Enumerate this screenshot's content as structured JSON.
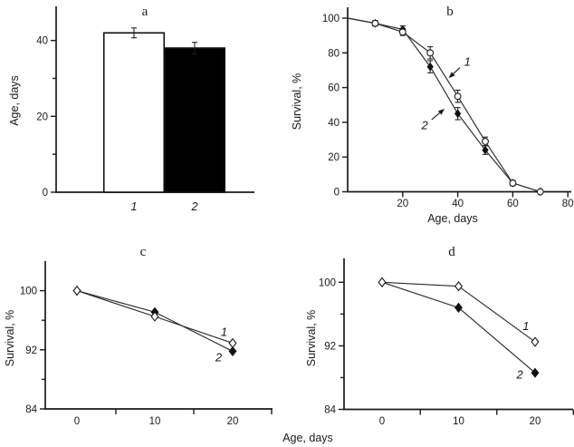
{
  "figure": {
    "bottom_xlabel": "Age, days",
    "ink_color": "#1a1a1a",
    "background_color": "#ffffff"
  },
  "chart_data": [
    {
      "panel": "a",
      "type": "bar",
      "title": "a",
      "ylabel": "Age, days",
      "categories": [
        "1",
        "2"
      ],
      "values": [
        42,
        38
      ],
      "errors": [
        1.3,
        1.5
      ],
      "bar_fills": [
        "#ffffff",
        "#000000"
      ],
      "ylim": [
        0,
        49
      ],
      "yticks": [
        0,
        20,
        40
      ],
      "yticks_minor": [
        10,
        30
      ],
      "grid": "off"
    },
    {
      "panel": "b",
      "type": "line",
      "title": "b",
      "xlabel": "Age, days",
      "ylabel": "Survival, %",
      "x": [
        0,
        10,
        20,
        30,
        40,
        50,
        60,
        70
      ],
      "series": [
        {
          "name": "1",
          "marker": "open-circle",
          "values": [
            100,
            97,
            92,
            80,
            55,
            29,
            5,
            0
          ],
          "errors": [
            0,
            1.5,
            2,
            3.5,
            3.5,
            2.5,
            1.5,
            0
          ]
        },
        {
          "name": "2",
          "marker": "filled-diamond",
          "values": [
            100,
            97,
            93.5,
            72,
            45,
            24,
            5,
            0
          ],
          "errors": [
            0,
            1.5,
            2,
            3.5,
            3.5,
            2.5,
            1.5,
            0
          ]
        }
      ],
      "xlim": [
        0,
        80
      ],
      "ylim": [
        0,
        100
      ],
      "xticks": [
        20,
        40,
        60,
        80
      ],
      "xtick_labels": [
        20,
        40,
        60,
        80
      ],
      "yticks": [
        0,
        20,
        40,
        60,
        80,
        100
      ],
      "grid": "off",
      "annotations": [
        {
          "text": "1",
          "x": 43.5,
          "y": 75,
          "arrow": {
            "x1": 40.8,
            "y1": 71.5,
            "x2": 36.7,
            "y2": 65.5
          }
        },
        {
          "text": "2",
          "x": 28.0,
          "y": 38.5,
          "arrow": {
            "x1": 30.5,
            "y1": 41.5,
            "x2": 35.2,
            "y2": 47.8
          }
        }
      ]
    },
    {
      "panel": "c",
      "type": "line",
      "title": "c",
      "ylabel": "Survival, %",
      "x": [
        0,
        10,
        20
      ],
      "series": [
        {
          "name": "1",
          "marker": "open-diamond",
          "values": [
            100,
            96.5,
            92.9
          ]
        },
        {
          "name": "2",
          "marker": "filled-diamond",
          "values": [
            100,
            97.1,
            91.8
          ]
        }
      ],
      "xlim": [
        -4,
        25
      ],
      "ylim": [
        84,
        104
      ],
      "xticks": [
        5,
        15,
        25
      ],
      "xtick_labels": [
        0,
        10,
        20
      ],
      "yticks": [
        84,
        92,
        100
      ],
      "yticks_minor": [
        88,
        96
      ],
      "grid": "off",
      "annotations": [
        {
          "text": "1",
          "x": 18.9,
          "y": 94.4
        },
        {
          "text": "2",
          "x": 18.2,
          "y": 91.0
        }
      ]
    },
    {
      "panel": "d",
      "type": "line",
      "title": "d",
      "ylabel": "Survival, %",
      "x": [
        0,
        10,
        20
      ],
      "series": [
        {
          "name": "1",
          "marker": "open-diamond",
          "values": [
            100,
            99.5,
            92.5
          ]
        },
        {
          "name": "2",
          "marker": "filled-diamond",
          "values": [
            100,
            96.8,
            88.6
          ]
        }
      ],
      "xlim": [
        -4,
        25
      ],
      "ylim": [
        84,
        103
      ],
      "xticks": [
        5,
        15,
        25
      ],
      "xtick_labels": [
        0,
        10,
        20
      ],
      "yticks": [
        84,
        92,
        100
      ],
      "yticks_minor": [
        88,
        96
      ],
      "grid": "off",
      "annotations": [
        {
          "text": "1",
          "x": 18.8,
          "y": 94.5
        },
        {
          "text": "2",
          "x": 18.0,
          "y": 88.4
        }
      ]
    }
  ]
}
